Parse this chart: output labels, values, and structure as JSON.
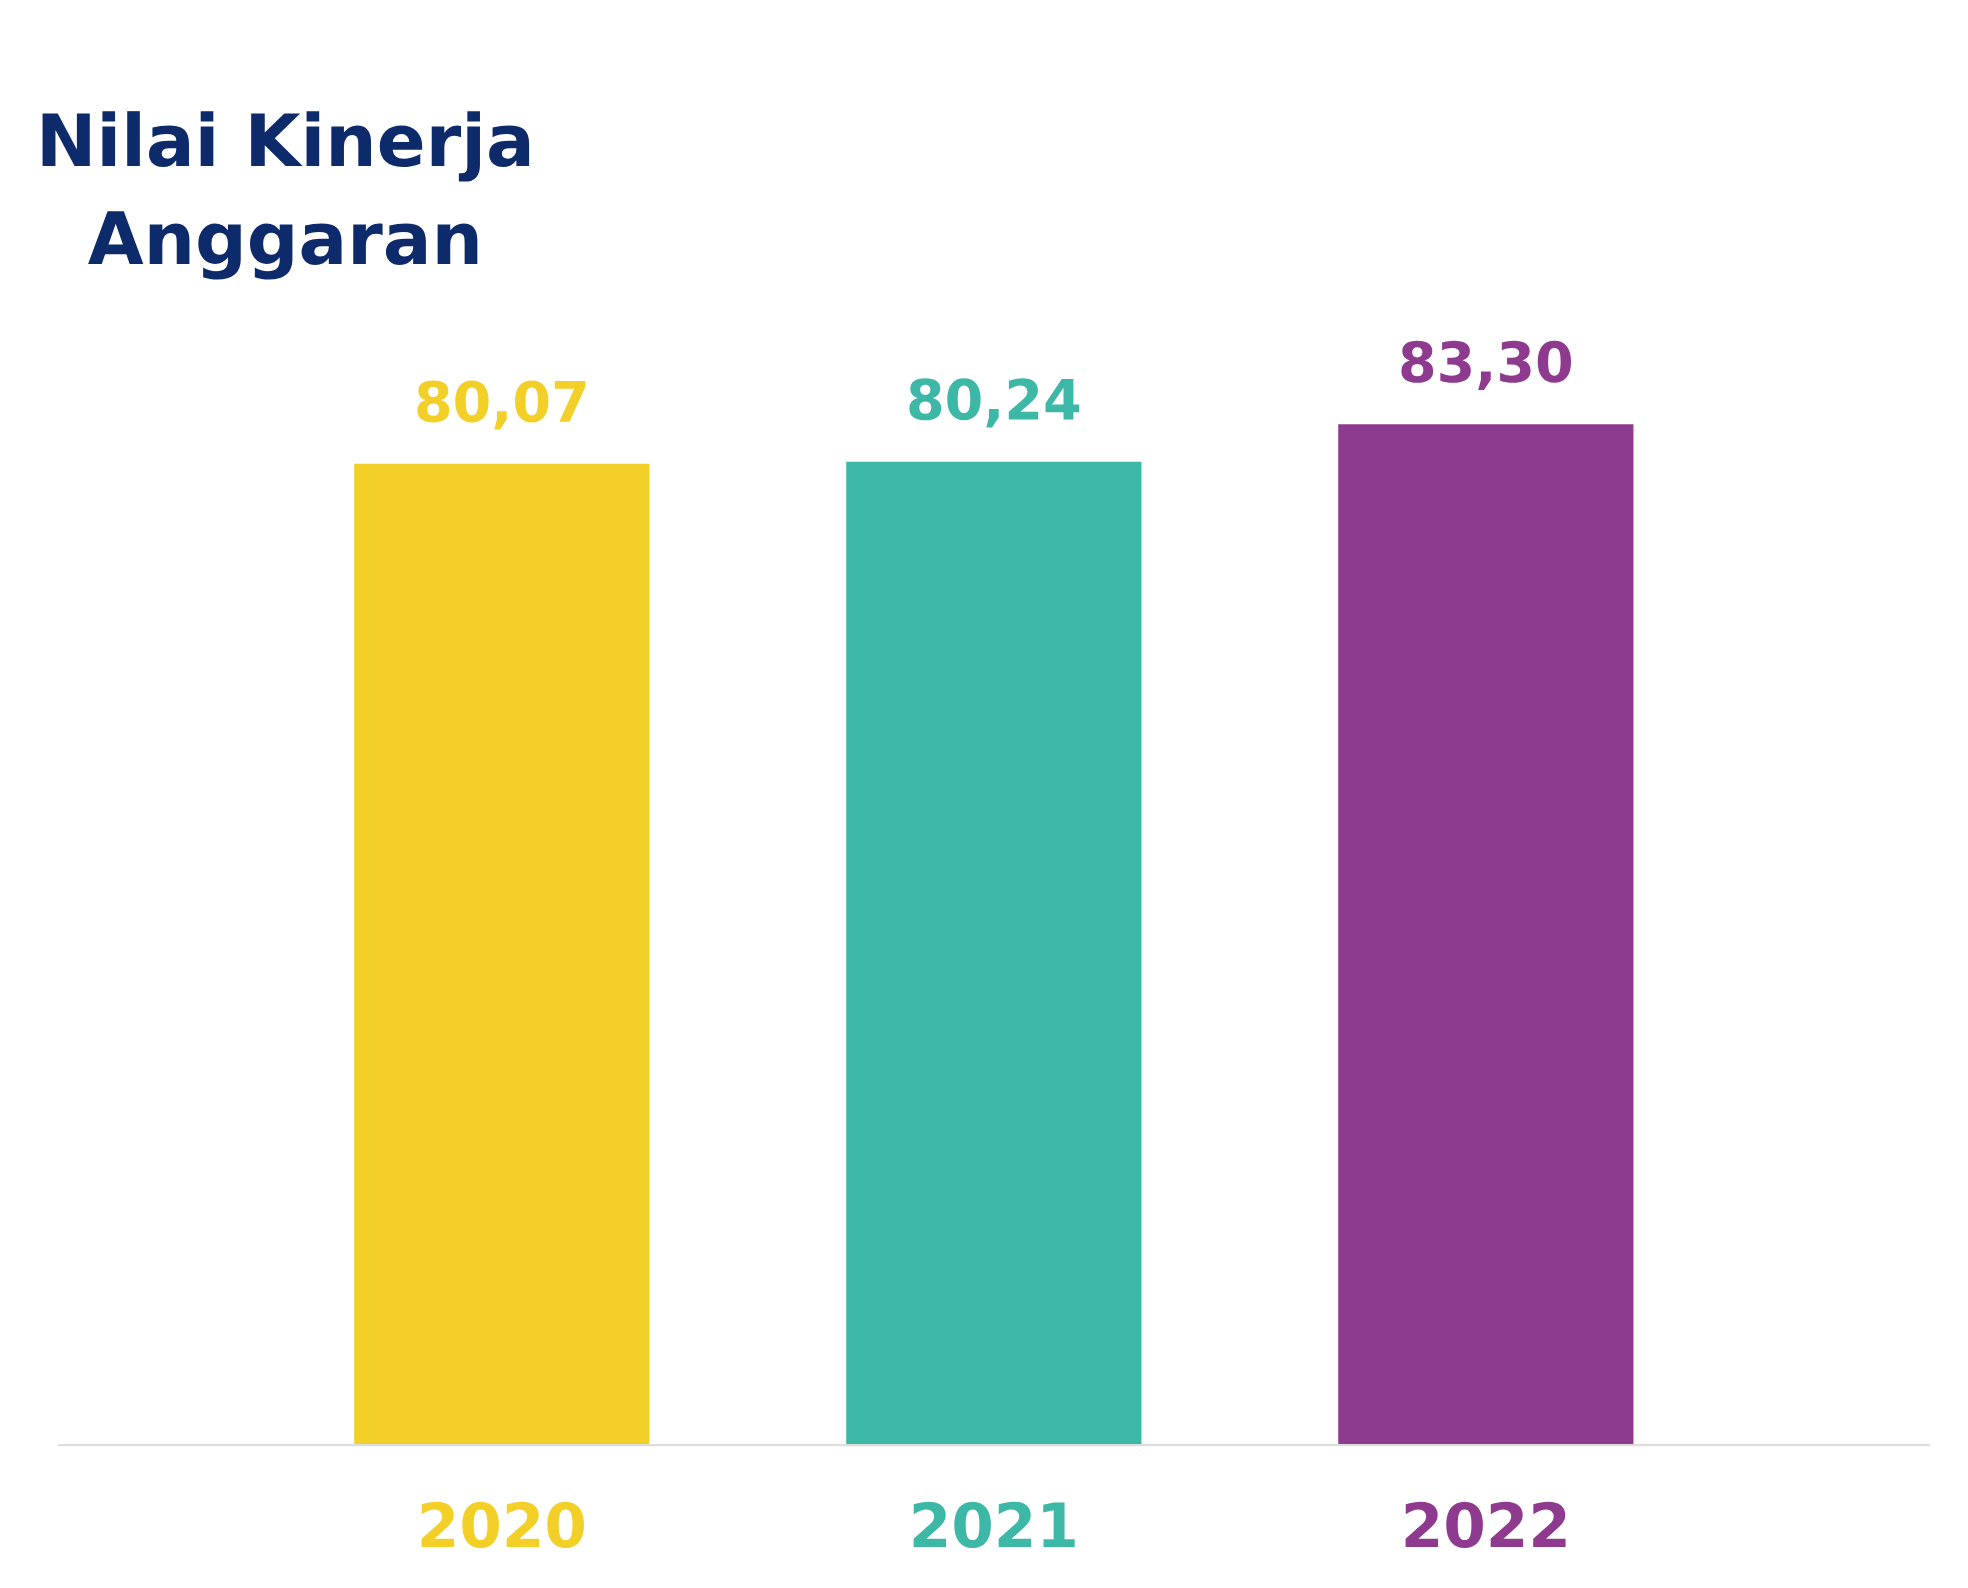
{
  "chart_data": {
    "type": "bar",
    "title": "Nilai Kinerja\nAnggaran",
    "categories": [
      "2020",
      "2021",
      "2022"
    ],
    "values": [
      80.07,
      80.24,
      83.3
    ],
    "colors": [
      "#f2d027",
      "#3db8a6",
      "#8e3a8e"
    ],
    "value_labels": [
      "80,07",
      "80,24",
      "83,30"
    ],
    "grid": false,
    "legend": false
  }
}
